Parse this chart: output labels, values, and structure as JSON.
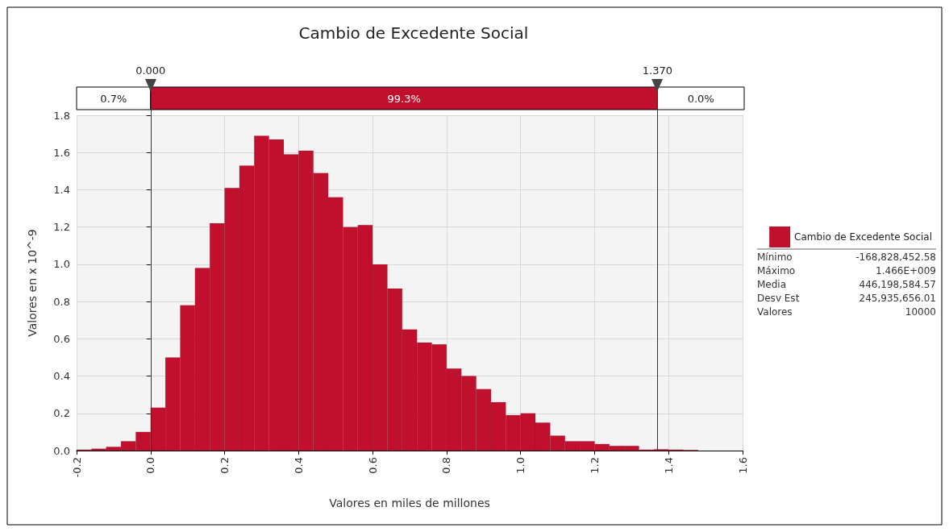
{
  "chart_data": {
    "type": "histogram",
    "title": "Cambio de Excedente Social",
    "xlabel": "Valores en miles de millones",
    "ylabel": "Valores en x 10^-9",
    "bins": [
      -0.2,
      -0.16,
      -0.12,
      -0.08,
      -0.04,
      0,
      0.04,
      0.08,
      0.12,
      0.16,
      0.2,
      0.24,
      0.28,
      0.32,
      0.36,
      0.4,
      0.44,
      0.48,
      0.52,
      0.56,
      0.6,
      0.64,
      0.68,
      0.72,
      0.76,
      0.8,
      0.84,
      0.88,
      0.92,
      0.96,
      1,
      1.04,
      1.08,
      1.12,
      1.16,
      1.2,
      1.24,
      1.28,
      1.32,
      1.36,
      1.4,
      1.44,
      1.48
    ],
    "series": [
      {
        "name": "Cambio de Excedente Social",
        "color": "#c0102e",
        "values": [
          0.005,
          0.01,
          0.02,
          0.05,
          0.1,
          0.23,
          0.5,
          0.78,
          0.98,
          1.22,
          1.41,
          1.53,
          1.69,
          1.67,
          1.59,
          1.61,
          1.49,
          1.36,
          1.2,
          1.21,
          1,
          0.87,
          0.65,
          0.58,
          0.57,
          0.44,
          0.4,
          0.33,
          0.26,
          0.19,
          0.2,
          0.15,
          0.08,
          0.05,
          0.05,
          0.035,
          0.025,
          0.025,
          0.005,
          0.007,
          0.005,
          0.003
        ]
      }
    ],
    "xlim": [
      -0.2,
      1.6
    ],
    "xticks": [
      -0.2,
      {
        "value": 0,
        "label": "0.0"
      },
      0.2,
      0.4,
      0.6,
      0.8,
      {
        "value": 1,
        "label": "1.0"
      },
      1.2,
      1.4,
      1.6
    ],
    "ylim": [
      0,
      1.8
    ],
    "yticks": [
      {
        "value": 0,
        "label": "0.0"
      },
      0.2,
      0.4,
      0.6,
      0.8,
      {
        "value": 1,
        "label": "1.0"
      },
      1.2,
      1.4,
      1.6,
      1.8
    ],
    "ref_lines": [
      {
        "axis": "x",
        "value": 0,
        "label": "0.000"
      },
      {
        "axis": "x",
        "value": 1.37,
        "label": "1.370"
      }
    ],
    "annotations": [
      "0.7%",
      "99.3%",
      "0.0%",
      "Mínimo",
      "-168,828,452.58",
      "Máximo",
      "1.466E+009",
      "Media",
      "446,198,584.57",
      "Desv Est",
      "245,935,656.01",
      "Valores",
      "10000"
    ],
    "grid": true,
    "legend": "right"
  }
}
